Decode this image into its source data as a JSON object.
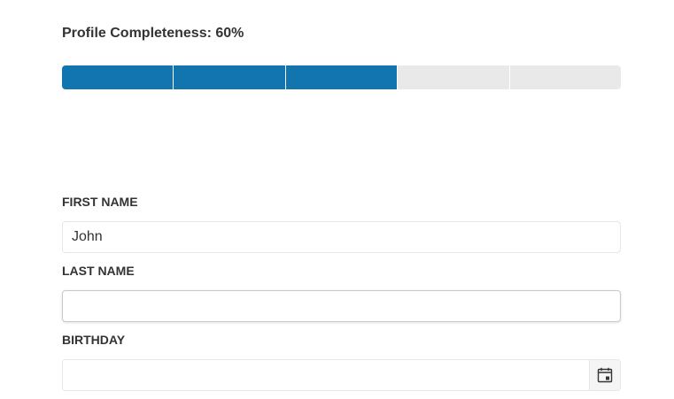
{
  "profile": {
    "completeness_label": "Profile Completeness: 60%",
    "completeness_fraction": 0.6,
    "segments_total": 5,
    "segments_filled": 3
  },
  "colors": {
    "progress_filled": "#1275b0",
    "progress_empty": "#e9e9e9"
  },
  "form": {
    "first_name": {
      "label": "FIRST NAME",
      "value": "John"
    },
    "last_name": {
      "label": "LAST NAME",
      "value": ""
    },
    "birthday": {
      "label": "BIRTHDAY",
      "value": "",
      "button_icon": "calendar-icon"
    }
  }
}
